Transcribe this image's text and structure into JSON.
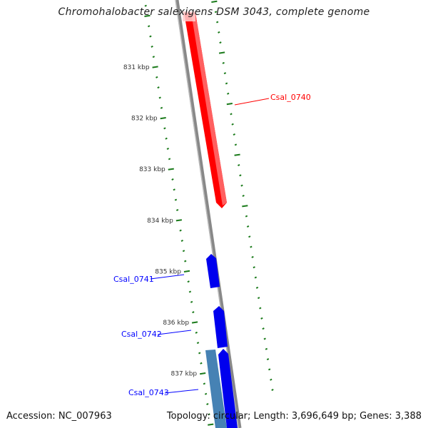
{
  "title": "Chromohalobacter salexigens DSM 3043, complete genome",
  "accession": "Accession: NC_007963",
  "summary": "Topology: circular; Length: 3,696,649 bp; Genes: 3,388",
  "colors": {
    "forward_gene": "#ff0000",
    "reverse_gene": "#0000ff",
    "other_gene": "#4682b4",
    "ticks": "#1a7a1a",
    "backbone": "#808080"
  },
  "ticks": [
    {
      "label": "831 kbp",
      "kbp": 831
    },
    {
      "label": "832 kbp",
      "kbp": 832
    },
    {
      "label": "833 kbp",
      "kbp": 833
    },
    {
      "label": "834 kbp",
      "kbp": 834
    },
    {
      "label": "835 kbp",
      "kbp": 835
    },
    {
      "label": "836 kbp",
      "kbp": 836
    },
    {
      "label": "837 kbp",
      "kbp": 837
    }
  ],
  "genes": [
    {
      "name": "Csal_0740",
      "strand": "forward"
    },
    {
      "name": "Csal_0741",
      "strand": "reverse"
    },
    {
      "name": "Csal_0742",
      "strand": "reverse"
    },
    {
      "name": "Csal_0743",
      "strand": "reverse"
    }
  ]
}
